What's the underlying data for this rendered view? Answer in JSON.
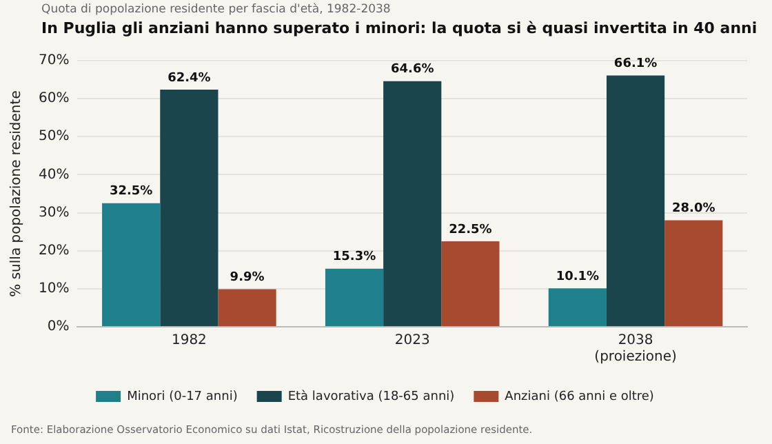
{
  "chart_data": {
    "type": "bar",
    "title": "In Puglia gli anziani hanno superato i minori: la quota si è quasi invertita in 40 anni",
    "subtitle": "Quota di popolazione residente per fascia d'età, 1982-2038",
    "ylabel": "% sulla popolazione residente",
    "categories": [
      "1982",
      "2023",
      "2038\n(proiezione)"
    ],
    "series": [
      {
        "name": "Minori (0-17 anni)",
        "color": "#1f7f8a",
        "values": [
          32.5,
          15.3,
          10.1
        ],
        "value_labels": [
          "32.5%",
          "15.3%",
          "10.1%"
        ]
      },
      {
        "name": "Età lavorativa (18-65 anni)",
        "color": "#1a454d",
        "values": [
          62.4,
          64.6,
          66.1
        ],
        "value_labels": [
          "62.4%",
          "64.6%",
          "66.1%"
        ]
      },
      {
        "name": "Anziani (66 anni e oltre)",
        "color": "#a84a2f",
        "values": [
          9.9,
          22.5,
          28.0
        ],
        "value_labels": [
          "9.9%",
          "22.5%",
          "28.0%"
        ]
      }
    ],
    "ylim": [
      0,
      70
    ],
    "yticks": [
      {
        "value": 0,
        "label": "0%"
      },
      {
        "value": 10,
        "label": "10%"
      },
      {
        "value": 20,
        "label": "20%"
      },
      {
        "value": 30,
        "label": "30%"
      },
      {
        "value": 40,
        "label": "40%"
      },
      {
        "value": 50,
        "label": "50%"
      },
      {
        "value": 60,
        "label": "60%"
      },
      {
        "value": 70,
        "label": "70%"
      }
    ],
    "grid": "y",
    "legend": "bottom",
    "annotations": [
      "Fonte: Elaborazione Osservatorio Economico su dati Istat, Ricostruzione della popolazione residente."
    ]
  }
}
